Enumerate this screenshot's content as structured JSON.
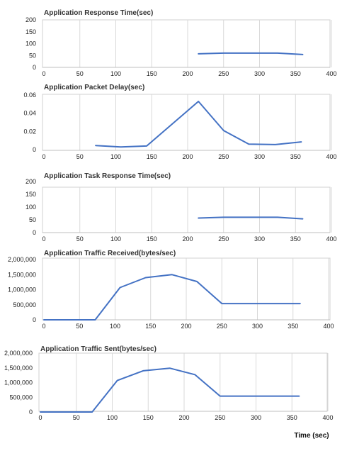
{
  "chart_data": [
    {
      "type": "line",
      "title": "Application Response Time(sec)",
      "xlabel": "",
      "ylabel": "",
      "xlim": [
        0,
        400
      ],
      "ylim": [
        0,
        200
      ],
      "x_ticks": [
        "0",
        "50",
        "100",
        "150",
        "200",
        "250",
        "300",
        "350",
        "400"
      ],
      "y_ticks": [
        "0",
        "50",
        "100",
        "150",
        "200"
      ],
      "grid": true,
      "series": [
        {
          "color": "#4472c4",
          "x": [
            215,
            250,
            325,
            360
          ],
          "y": [
            57,
            60,
            60,
            54
          ]
        }
      ]
    },
    {
      "type": "line",
      "title": "Application Packet Delay(sec)",
      "xlabel": "",
      "ylabel": "",
      "xlim": [
        0,
        400
      ],
      "ylim": [
        0,
        0.06
      ],
      "x_ticks": [
        "0",
        "50",
        "100",
        "150",
        "200",
        "250",
        "300",
        "350",
        "400"
      ],
      "y_ticks": [
        "0",
        "0.02",
        "0.04",
        "0.06"
      ],
      "grid": true,
      "series": [
        {
          "color": "#4472c4",
          "x": [
            72,
            107,
            143,
            215,
            250,
            285,
            322,
            358
          ],
          "y": [
            0.0045,
            0.003,
            0.004,
            0.053,
            0.021,
            0.006,
            0.0055,
            0.0085
          ]
        }
      ]
    },
    {
      "type": "line",
      "title": "Application Task Response Time(sec)",
      "xlabel": "",
      "ylabel": "",
      "xlim": [
        0,
        400
      ],
      "ylim": [
        0,
        200
      ],
      "x_ticks": [
        "0",
        "50",
        "100",
        "150",
        "200",
        "250",
        "300",
        "350",
        "400"
      ],
      "y_ticks": [
        "0",
        "50",
        "100",
        "150",
        "200"
      ],
      "grid": true,
      "series": [
        {
          "color": "#4472c4",
          "x": [
            215,
            250,
            325,
            360
          ],
          "y": [
            57,
            60,
            60,
            54
          ]
        }
      ]
    },
    {
      "type": "line",
      "title": "Application Traffic Received(bytes/sec)",
      "xlabel": "",
      "ylabel": "",
      "xlim": [
        0,
        400
      ],
      "ylim": [
        0,
        2000000
      ],
      "x_ticks": [
        "0",
        "50",
        "100",
        "150",
        "200",
        "250",
        "300",
        "350",
        "400"
      ],
      "y_ticks": [
        "0",
        "500,000",
        "1,000,000",
        "1,500,000",
        "2,000,000"
      ],
      "grid": true,
      "series": [
        {
          "color": "#4472c4",
          "x": [
            0,
            72,
            107,
            143,
            180,
            215,
            250,
            360
          ],
          "y": [
            0,
            0,
            1070000,
            1400000,
            1500000,
            1270000,
            540000,
            540000
          ]
        }
      ]
    },
    {
      "type": "line",
      "title": "Application Traffic Sent(bytes/sec)",
      "xlabel": "Time (sec)",
      "ylabel": "",
      "xlim": [
        0,
        400
      ],
      "ylim": [
        0,
        2000000
      ],
      "x_ticks": [
        "0",
        "50",
        "100",
        "150",
        "200",
        "250",
        "300",
        "350",
        "400"
      ],
      "y_ticks": [
        "0",
        "500,000",
        "1,000,000",
        "1,500,000",
        "2,000,000"
      ],
      "grid": true,
      "series": [
        {
          "color": "#4472c4",
          "x": [
            0,
            72,
            107,
            143,
            180,
            215,
            250,
            360
          ],
          "y": [
            0,
            0,
            1070000,
            1400000,
            1490000,
            1270000,
            540000,
            540000
          ]
        }
      ]
    }
  ]
}
